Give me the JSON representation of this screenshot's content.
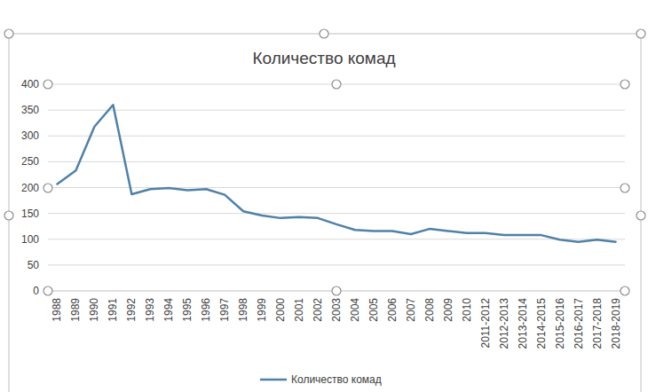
{
  "chart_data": {
    "type": "line",
    "title": "Количество комад",
    "categories": [
      "1988",
      "1989",
      "1990",
      "1991",
      "1992",
      "1993",
      "1994",
      "1995",
      "1996",
      "1997",
      "1998",
      "1999",
      "2000",
      "2001",
      "2002",
      "2003",
      "2004",
      "2005",
      "2006",
      "2007",
      "2008",
      "2009",
      "2010",
      "2011-2012",
      "2012-2013",
      "2013-2014",
      "2014-2015",
      "2015-2016",
      "2016-2017",
      "2017-2018",
      "2018-2019"
    ],
    "series": [
      {
        "name": "Количество комад",
        "color": "#4f81a8",
        "values": [
          207,
          233,
          318,
          360,
          187,
          197,
          199,
          195,
          197,
          186,
          154,
          146,
          141,
          143,
          141,
          129,
          118,
          116,
          116,
          110,
          120,
          116,
          112,
          112,
          108,
          108,
          108,
          99,
          95,
          99,
          95
        ]
      }
    ],
    "ylim": [
      0,
      400
    ],
    "yticks": [
      0,
      50,
      100,
      150,
      200,
      250,
      300,
      350,
      400
    ],
    "grid": true,
    "legend": "bottom"
  }
}
